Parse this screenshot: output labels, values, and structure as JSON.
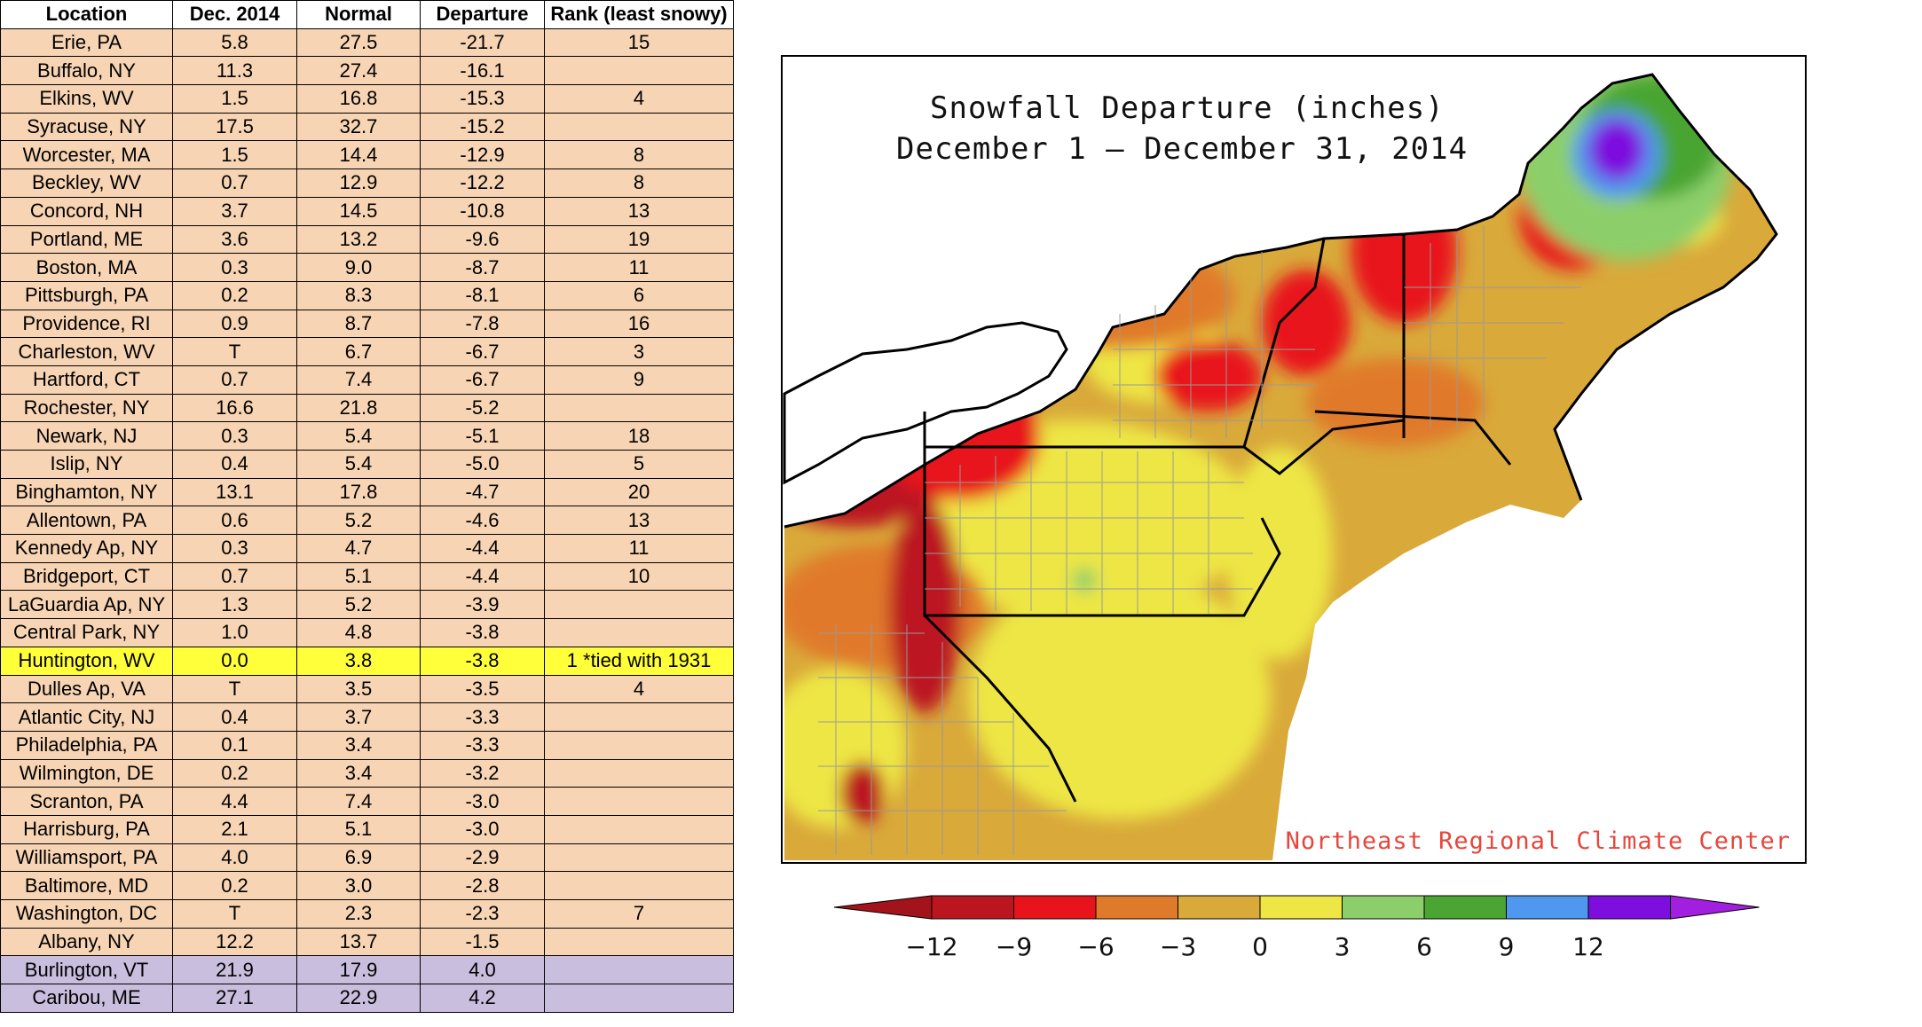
{
  "table": {
    "headers": [
      "Location",
      "Dec. 2014",
      "Normal",
      "Departure",
      "Rank (least snowy)"
    ],
    "rows": [
      {
        "location": "Erie, PA",
        "dec2014": "5.8",
        "normal": "27.5",
        "departure": "-21.7",
        "rank": "15",
        "style": "normal"
      },
      {
        "location": "Buffalo, NY",
        "dec2014": "11.3",
        "normal": "27.4",
        "departure": "-16.1",
        "rank": "",
        "style": "normal"
      },
      {
        "location": "Elkins, WV",
        "dec2014": "1.5",
        "normal": "16.8",
        "departure": "-15.3",
        "rank": "4",
        "style": "normal"
      },
      {
        "location": "Syracuse, NY",
        "dec2014": "17.5",
        "normal": "32.7",
        "departure": "-15.2",
        "rank": "",
        "style": "normal"
      },
      {
        "location": "Worcester, MA",
        "dec2014": "1.5",
        "normal": "14.4",
        "departure": "-12.9",
        "rank": "8",
        "style": "normal"
      },
      {
        "location": "Beckley, WV",
        "dec2014": "0.7",
        "normal": "12.9",
        "departure": "-12.2",
        "rank": "8",
        "style": "normal"
      },
      {
        "location": "Concord, NH",
        "dec2014": "3.7",
        "normal": "14.5",
        "departure": "-10.8",
        "rank": "13",
        "style": "normal"
      },
      {
        "location": "Portland, ME",
        "dec2014": "3.6",
        "normal": "13.2",
        "departure": "-9.6",
        "rank": "19",
        "style": "normal"
      },
      {
        "location": "Boston, MA",
        "dec2014": "0.3",
        "normal": "9.0",
        "departure": "-8.7",
        "rank": "11",
        "style": "normal"
      },
      {
        "location": "Pittsburgh, PA",
        "dec2014": "0.2",
        "normal": "8.3",
        "departure": "-8.1",
        "rank": "6",
        "style": "normal"
      },
      {
        "location": "Providence, RI",
        "dec2014": "0.9",
        "normal": "8.7",
        "departure": "-7.8",
        "rank": "16",
        "style": "normal"
      },
      {
        "location": "Charleston, WV",
        "dec2014": "T",
        "normal": "6.7",
        "departure": "-6.7",
        "rank": "3",
        "style": "normal"
      },
      {
        "location": "Hartford, CT",
        "dec2014": "0.7",
        "normal": "7.4",
        "departure": "-6.7",
        "rank": "9",
        "style": "normal"
      },
      {
        "location": "Rochester, NY",
        "dec2014": "16.6",
        "normal": "21.8",
        "departure": "-5.2",
        "rank": "",
        "style": "normal"
      },
      {
        "location": "Newark, NJ",
        "dec2014": "0.3",
        "normal": "5.4",
        "departure": "-5.1",
        "rank": "18",
        "style": "normal"
      },
      {
        "location": "Islip, NY",
        "dec2014": "0.4",
        "normal": "5.4",
        "departure": "-5.0",
        "rank": "5",
        "style": "normal"
      },
      {
        "location": "Binghamton, NY",
        "dec2014": "13.1",
        "normal": "17.8",
        "departure": "-4.7",
        "rank": "20",
        "style": "normal"
      },
      {
        "location": "Allentown, PA",
        "dec2014": "0.6",
        "normal": "5.2",
        "departure": "-4.6",
        "rank": "13",
        "style": "normal"
      },
      {
        "location": "Kennedy Ap, NY",
        "dec2014": "0.3",
        "normal": "4.7",
        "departure": "-4.4",
        "rank": "11",
        "style": "normal"
      },
      {
        "location": "Bridgeport, CT",
        "dec2014": "0.7",
        "normal": "5.1",
        "departure": "-4.4",
        "rank": "10",
        "style": "normal"
      },
      {
        "location": "LaGuardia Ap, NY",
        "dec2014": "1.3",
        "normal": "5.2",
        "departure": "-3.9",
        "rank": "",
        "style": "normal"
      },
      {
        "location": "Central Park, NY",
        "dec2014": "1.0",
        "normal": "4.8",
        "departure": "-3.8",
        "rank": "",
        "style": "normal"
      },
      {
        "location": "Huntington, WV",
        "dec2014": "0.0",
        "normal": "3.8",
        "departure": "-3.8",
        "rank": "1 *tied with 1931",
        "style": "highlight"
      },
      {
        "location": "Dulles Ap, VA",
        "dec2014": "T",
        "normal": "3.5",
        "departure": "-3.5",
        "rank": "4",
        "style": "normal"
      },
      {
        "location": "Atlantic City, NJ",
        "dec2014": "0.4",
        "normal": "3.7",
        "departure": "-3.3",
        "rank": "",
        "style": "normal"
      },
      {
        "location": "Philadelphia, PA",
        "dec2014": "0.1",
        "normal": "3.4",
        "departure": "-3.3",
        "rank": "",
        "style": "normal"
      },
      {
        "location": "Wilmington, DE",
        "dec2014": "0.2",
        "normal": "3.4",
        "departure": "-3.2",
        "rank": "",
        "style": "normal"
      },
      {
        "location": "Scranton, PA",
        "dec2014": "4.4",
        "normal": "7.4",
        "departure": "-3.0",
        "rank": "",
        "style": "normal"
      },
      {
        "location": "Harrisburg, PA",
        "dec2014": "2.1",
        "normal": "5.1",
        "departure": "-3.0",
        "rank": "",
        "style": "normal"
      },
      {
        "location": "Williamsport, PA",
        "dec2014": "4.0",
        "normal": "6.9",
        "departure": "-2.9",
        "rank": "",
        "style": "normal"
      },
      {
        "location": "Baltimore, MD",
        "dec2014": "0.2",
        "normal": "3.0",
        "departure": "-2.8",
        "rank": "",
        "style": "normal"
      },
      {
        "location": "Washington, DC",
        "dec2014": "T",
        "normal": "2.3",
        "departure": "-2.3",
        "rank": "7",
        "style": "normal"
      },
      {
        "location": "Albany, NY",
        "dec2014": "12.2",
        "normal": "13.7",
        "departure": "-1.5",
        "rank": "",
        "style": "normal"
      },
      {
        "location": "Burlington, VT",
        "dec2014": "21.9",
        "normal": "17.9",
        "departure": "4.0",
        "rank": "",
        "style": "above"
      },
      {
        "location": "Caribou, ME",
        "dec2014": "27.1",
        "normal": "22.9",
        "departure": "4.2",
        "rank": "",
        "style": "above"
      }
    ]
  },
  "map": {
    "title_line1": "Snowfall Departure (inches)",
    "title_line2": "December 1 — December 31, 2014",
    "credit": "Northeast Regional Climate Center"
  },
  "legend": {
    "ticks": [
      "−12",
      "−9",
      "−6",
      "−3",
      "0",
      "3",
      "6",
      "9",
      "12"
    ],
    "bin_colors": [
      "#bb1620",
      "#e8141c",
      "#e07a2b",
      "#d9a93a",
      "#ede645",
      "#8ccf6a",
      "#4aa532",
      "#4e98f0",
      "#7d0ede"
    ],
    "low_arrow_color": "#a3131b",
    "high_arrow_color": "#a31fe0"
  },
  "chart_data": {
    "type": "table",
    "columns": [
      "Location",
      "Dec. 2014",
      "Normal",
      "Departure",
      "Rank (least snowy)"
    ],
    "rows": [
      [
        "Erie, PA",
        "5.8",
        "27.5",
        "-21.7",
        "15"
      ],
      [
        "Buffalo, NY",
        "11.3",
        "27.4",
        "-16.1",
        ""
      ],
      [
        "Elkins, WV",
        "1.5",
        "16.8",
        "-15.3",
        "4"
      ],
      [
        "Syracuse, NY",
        "17.5",
        "32.7",
        "-15.2",
        ""
      ],
      [
        "Worcester, MA",
        "1.5",
        "14.4",
        "-12.9",
        "8"
      ],
      [
        "Beckley, WV",
        "0.7",
        "12.9",
        "-12.2",
        "8"
      ],
      [
        "Concord, NH",
        "3.7",
        "14.5",
        "-10.8",
        "13"
      ],
      [
        "Portland, ME",
        "3.6",
        "13.2",
        "-9.6",
        "19"
      ],
      [
        "Boston, MA",
        "0.3",
        "9.0",
        "-8.7",
        "11"
      ],
      [
        "Pittsburgh, PA",
        "0.2",
        "8.3",
        "-8.1",
        "6"
      ],
      [
        "Providence, RI",
        "0.9",
        "8.7",
        "-7.8",
        "16"
      ],
      [
        "Charleston, WV",
        "T",
        "6.7",
        "-6.7",
        "3"
      ],
      [
        "Hartford, CT",
        "0.7",
        "7.4",
        "-6.7",
        "9"
      ],
      [
        "Rochester, NY",
        "16.6",
        "21.8",
        "-5.2",
        ""
      ],
      [
        "Newark, NJ",
        "0.3",
        "5.4",
        "-5.1",
        "18"
      ],
      [
        "Islip, NY",
        "0.4",
        "5.4",
        "-5.0",
        "5"
      ],
      [
        "Binghamton, NY",
        "13.1",
        "17.8",
        "-4.7",
        "20"
      ],
      [
        "Allentown, PA",
        "0.6",
        "5.2",
        "-4.6",
        "13"
      ],
      [
        "Kennedy Ap, NY",
        "0.3",
        "4.7",
        "-4.4",
        "11"
      ],
      [
        "Bridgeport, CT",
        "0.7",
        "5.1",
        "-4.4",
        "10"
      ],
      [
        "LaGuardia Ap, NY",
        "1.3",
        "5.2",
        "-3.9",
        ""
      ],
      [
        "Central Park, NY",
        "1.0",
        "4.8",
        "-3.8",
        ""
      ],
      [
        "Huntington, WV",
        "0.0",
        "3.8",
        "-3.8",
        "1 *tied with 1931"
      ],
      [
        "Dulles Ap, VA",
        "T",
        "3.5",
        "-3.5",
        "4"
      ],
      [
        "Atlantic City, NJ",
        "0.4",
        "3.7",
        "-3.3",
        ""
      ],
      [
        "Philadelphia, PA",
        "0.1",
        "3.4",
        "-3.3",
        ""
      ],
      [
        "Wilmington, DE",
        "0.2",
        "3.4",
        "-3.2",
        ""
      ],
      [
        "Scranton, PA",
        "4.4",
        "7.4",
        "-3.0",
        ""
      ],
      [
        "Harrisburg, PA",
        "2.1",
        "5.1",
        "-3.0",
        ""
      ],
      [
        "Williamsport, PA",
        "4.0",
        "6.9",
        "-2.9",
        ""
      ],
      [
        "Baltimore, MD",
        "0.2",
        "3.0",
        "-2.8",
        ""
      ],
      [
        "Washington, DC",
        "T",
        "2.3",
        "-2.3",
        "7"
      ],
      [
        "Albany, NY",
        "12.2",
        "13.7",
        "-1.5",
        ""
      ],
      [
        "Burlington, VT",
        "21.9",
        "17.9",
        "4.0",
        ""
      ],
      [
        "Caribou, ME",
        "27.1",
        "22.9",
        "4.2",
        ""
      ]
    ],
    "map_title": "Snowfall Departure (inches)",
    "map_subtitle": "December 1 — December 31, 2014",
    "legend_ticks": [
      -12,
      -9,
      -6,
      -3,
      0,
      3,
      6,
      9,
      12
    ]
  }
}
